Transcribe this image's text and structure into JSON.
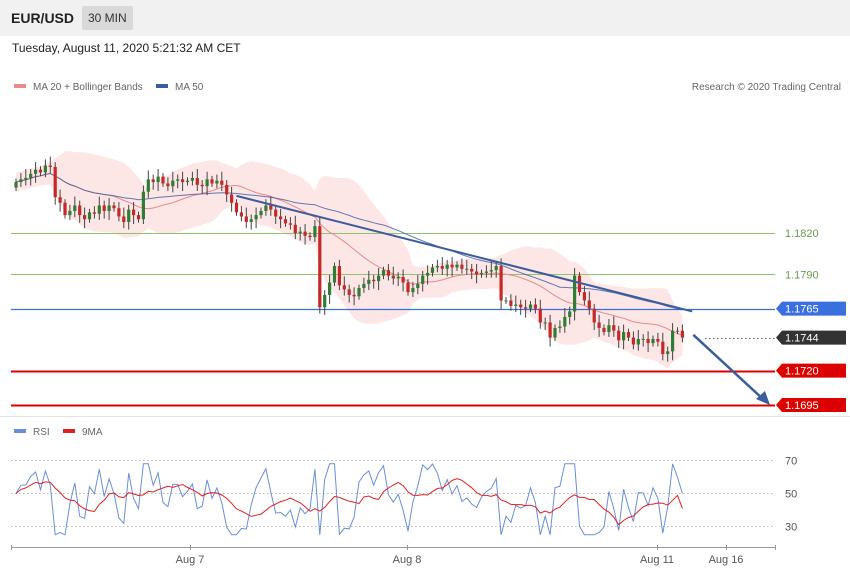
{
  "header": {
    "pair": "EUR/USD",
    "timeframe": "30 MIN",
    "datetime": "Tuesday, August 11, 2020 5:21:32 AM CET"
  },
  "legend": {
    "ma20": "MA 20 + Bollinger Bands",
    "ma50": "MA 50",
    "credit": "Research © 2020 Trading Central"
  },
  "rsi_legend": {
    "rsi": "RSI",
    "ma9": "9MA"
  },
  "colors": {
    "ma20": "#e98a8a",
    "band_fill": "#fde2e2",
    "ma50": "#3b5d9c",
    "trendline": "#3b5d9c",
    "green_level": "#8ec46b",
    "blue_level": "#3a6fe0",
    "red_level": "#dd0000",
    "current_price": "#333333",
    "rsi_line": "#6a8fd8",
    "rsi_ma": "#e02020",
    "bull_candle": "#2e7d32",
    "bear_candle": "#c62828"
  },
  "chart_data": {
    "type": "candlestick",
    "y_range": [
      1.168,
      1.1905
    ],
    "x_labels": [
      "Aug 7",
      "Aug 8",
      "Aug 11",
      "Aug 16"
    ],
    "levels": [
      {
        "value": 1.182,
        "label": "1.1820",
        "kind": "green"
      },
      {
        "value": 1.179,
        "label": "1.1790",
        "kind": "green"
      },
      {
        "value": 1.1765,
        "label": "1.1765",
        "kind": "blue"
      },
      {
        "value": 1.1744,
        "label": "1.1744",
        "kind": "current"
      },
      {
        "value": 1.172,
        "label": "1.1720",
        "kind": "red"
      },
      {
        "value": 1.1695,
        "label": "1.1695",
        "kind": "red"
      }
    ],
    "close": [
      1.1857,
      1.1859,
      1.186,
      1.1863,
      1.1866,
      1.1864,
      1.1869,
      1.1868,
      1.1846,
      1.1842,
      1.1833,
      1.1836,
      1.184,
      1.1833,
      1.183,
      1.1835,
      1.1834,
      1.184,
      1.1836,
      1.184,
      1.1838,
      1.1832,
      1.1828,
      1.1837,
      1.1833,
      1.183,
      1.185,
      1.1859,
      1.1857,
      1.1861,
      1.1856,
      1.1854,
      1.1858,
      1.1859,
      1.1857,
      1.1858,
      1.186,
      1.1855,
      1.1854,
      1.1859,
      1.1856,
      1.1858,
      1.1855,
      1.1848,
      1.1842,
      1.1835,
      1.1832,
      1.1828,
      1.183,
      1.1833,
      1.1836,
      1.184,
      1.1837,
      1.1832,
      1.183,
      1.1827,
      1.1826,
      1.182,
      1.1821,
      1.1818,
      1.1817,
      1.1825,
      1.1766,
      1.1775,
      1.1784,
      1.1796,
      1.1782,
      1.1779,
      1.1775,
      1.1774,
      1.178,
      1.1783,
      1.1786,
      1.1785,
      1.1789,
      1.1793,
      1.1789,
      1.1787,
      1.1788,
      1.1784,
      1.1777,
      1.178,
      1.1783,
      1.1789,
      1.1791,
      1.1795,
      1.1796,
      1.1794,
      1.1797,
      1.1795,
      1.1797,
      1.1794,
      1.1794,
      1.1792,
      1.179,
      1.1791,
      1.1792,
      1.1793,
      1.1796,
      1.1771,
      1.1771,
      1.1767,
      1.1768,
      1.1766,
      1.1765,
      1.1768,
      1.1765,
      1.1755,
      1.1755,
      1.1744,
      1.1751,
      1.1752,
      1.1759,
      1.1763,
      1.1789,
      1.1777,
      1.1771,
      1.1765,
      1.1755,
      1.1751,
      1.1748,
      1.1753,
      1.1749,
      1.1742,
      1.1748,
      1.1744,
      1.1739,
      1.1743,
      1.1743,
      1.174,
      1.1743,
      1.1741,
      1.1732,
      1.1734,
      1.1749,
      1.1749,
      1.1744
    ],
    "ma20_last": 1.1752,
    "ma50_last": 1.1767,
    "bands": "Bollinger (20, 2)",
    "trendline": {
      "from_index": 45,
      "from_value": 1.1847,
      "to_index": 138,
      "to_value": 1.1763
    },
    "projection": {
      "from_value": 1.1746,
      "to_value": 1.1695
    },
    "rsi": {
      "range": [
        15,
        85
      ],
      "levels": [
        70,
        50,
        30
      ],
      "last": 50,
      "ma_last": 41
    }
  }
}
